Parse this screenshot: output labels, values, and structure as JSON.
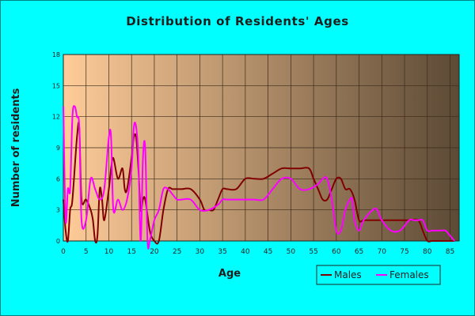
{
  "colors": {
    "background": "#00ffff",
    "plot_gradient_start": "#ffcc99",
    "plot_gradient_end": "#5c4a35",
    "males": "#800000",
    "females": "#ff00ff"
  },
  "chart_data": {
    "type": "line",
    "title": "Distribution of Residents' Ages",
    "xlabel": "Age",
    "ylabel": "Number of residents",
    "xlim": [
      0,
      87
    ],
    "ylim": [
      0,
      18
    ],
    "xticks": [
      0,
      5,
      10,
      15,
      20,
      25,
      30,
      35,
      40,
      45,
      50,
      55,
      60,
      65,
      70,
      75,
      80,
      85
    ],
    "yticks": [
      0,
      3,
      6,
      9,
      12,
      15,
      18
    ],
    "grid": true,
    "legend_position": "bottom-right",
    "series": [
      {
        "name": "Males",
        "color": "#800000",
        "x": [
          0,
          0.5,
          1,
          1.5,
          2,
          3,
          3.5,
          4,
          5,
          6,
          6.5,
          7,
          7.5,
          8,
          8.5,
          9,
          10,
          10.5,
          11,
          12,
          13,
          13.5,
          14,
          15,
          15.5,
          16,
          16.5,
          17,
          17.5,
          18,
          19,
          20,
          21,
          22,
          23,
          24,
          25,
          26,
          28,
          30,
          31,
          32,
          33,
          34,
          35,
          36,
          38,
          40,
          42,
          44,
          46,
          48,
          50,
          52,
          54,
          55,
          56,
          57,
          58,
          59,
          60,
          61,
          62,
          63,
          64,
          65,
          66,
          68,
          70,
          72,
          74,
          76,
          78,
          79,
          80,
          81,
          82,
          83,
          84,
          85,
          86
        ],
        "y": [
          4,
          1,
          0,
          3,
          4,
          10,
          11,
          4,
          4,
          3,
          2,
          0,
          0.5,
          5,
          4,
          2,
          5,
          7,
          8,
          6,
          7,
          5,
          5,
          8,
          10,
          10,
          7,
          3,
          4,
          4,
          1,
          0,
          0,
          3,
          5,
          5,
          5,
          5,
          5,
          4,
          3,
          3,
          3,
          4,
          5,
          5,
          5,
          6,
          6,
          6,
          6.5,
          7,
          7,
          7,
          7,
          6,
          5,
          4,
          4,
          5,
          6,
          6,
          5,
          5,
          4,
          2,
          2,
          2,
          2,
          2,
          2,
          2,
          2,
          1,
          0,
          0,
          0,
          0,
          0,
          0,
          0
        ]
      },
      {
        "name": "Females",
        "color": "#ff00ff",
        "x": [
          0,
          0.5,
          1,
          1.5,
          2,
          2.5,
          3,
          3.5,
          4,
          5,
          6,
          7,
          8,
          9,
          10,
          10.5,
          11,
          12,
          13,
          14,
          15,
          15.5,
          16,
          16.5,
          17,
          17.5,
          18,
          18.5,
          19,
          20,
          21,
          22,
          23,
          24,
          25,
          26,
          28,
          30,
          32,
          34,
          35,
          36,
          38,
          40,
          42,
          44,
          46,
          48,
          50,
          52,
          54,
          56,
          57,
          58,
          59,
          60,
          61,
          62,
          63,
          63.5,
          64,
          65,
          66,
          68,
          69,
          70,
          72,
          74,
          76,
          77,
          78,
          79,
          80,
          81,
          82,
          83,
          84,
          85,
          86
        ],
        "y": [
          13,
          2,
          5,
          5,
          12,
          13,
          12,
          11,
          2,
          2,
          6,
          5,
          4,
          5,
          10,
          10,
          3,
          4,
          3,
          4,
          7,
          11,
          11,
          8,
          0,
          8,
          9,
          0,
          0,
          2,
          3,
          5,
          5,
          4.5,
          4,
          4,
          4,
          3,
          3,
          3.5,
          4,
          4,
          4,
          4,
          4,
          4,
          5,
          6,
          6,
          5,
          5,
          5.5,
          6,
          6,
          4,
          1,
          1,
          3,
          4,
          4,
          2,
          1,
          2,
          3,
          3,
          2,
          1,
          1,
          2,
          2,
          2,
          2,
          1,
          1,
          1,
          1,
          1,
          0.5,
          0
        ]
      }
    ]
  },
  "legend": {
    "males_label": "Males",
    "females_label": "Females"
  }
}
